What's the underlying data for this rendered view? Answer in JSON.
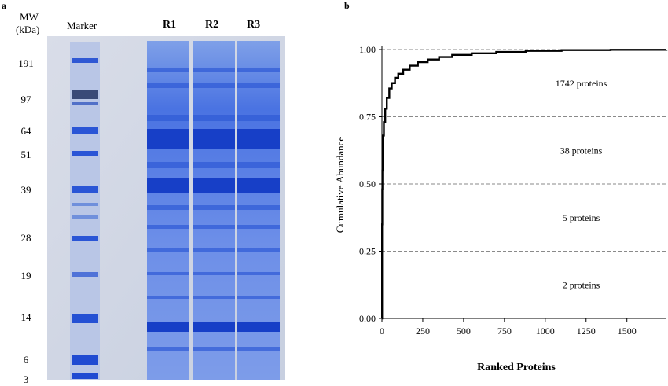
{
  "panel_a": {
    "label": "a",
    "mw_header_line1": "MW",
    "mw_header_line2": "(kDa)",
    "marker_label": "Marker",
    "lanes": [
      "R1",
      "R2",
      "R3"
    ],
    "mw_ticks": [
      "191",
      "97",
      "64",
      "51",
      "39",
      "28",
      "19",
      "14",
      "6",
      "3"
    ]
  },
  "panel_b": {
    "label": "b"
  },
  "chart_data": {
    "type": "line",
    "ylabel": "Cumulative  Abundance",
    "xlabel": "Ranked Proteins",
    "xlim": [
      0,
      1742
    ],
    "ylim": [
      0,
      1.0
    ],
    "x_ticks": [
      0,
      250,
      500,
      750,
      1000,
      1250,
      1500
    ],
    "y_ticks": [
      "0.00",
      "0.25",
      "0.50",
      "0.75",
      "1.00"
    ],
    "grid": "horizontal dashed at 0.25, 0.50, 0.75, 1.00",
    "series": [
      {
        "x": [
          0,
          1,
          2,
          3,
          5,
          8,
          12,
          20,
          30,
          45,
          60,
          80,
          100,
          130,
          170,
          220,
          280,
          350,
          430,
          550,
          700,
          880,
          1100,
          1400,
          1742
        ],
        "y": [
          0.0,
          0.35,
          0.48,
          0.55,
          0.62,
          0.68,
          0.73,
          0.78,
          0.82,
          0.855,
          0.875,
          0.895,
          0.91,
          0.925,
          0.94,
          0.953,
          0.963,
          0.972,
          0.98,
          0.986,
          0.991,
          0.995,
          0.998,
          0.999,
          1.0
        ]
      }
    ],
    "annotations": [
      "1742 proteins",
      "38 proteins",
      "5 proteins",
      "2 proteins"
    ]
  }
}
